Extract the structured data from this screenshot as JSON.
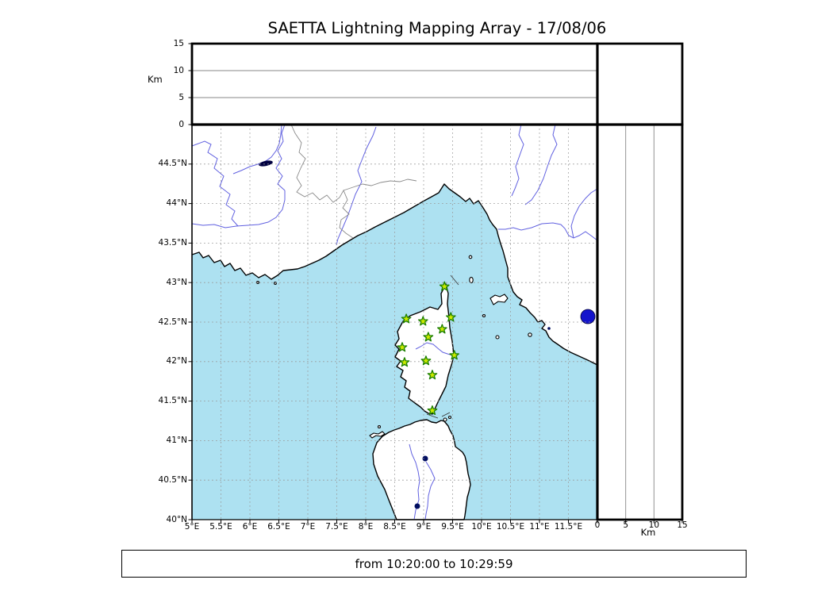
{
  "title": "SAETTA Lightning Mapping Array - 17/08/06",
  "footer": {
    "text": "from 10:20:00 to 10:29:59",
    "from": "10:20:00",
    "to": "10:29:59"
  },
  "colors": {
    "sea": "#ADE1F1",
    "land": "#FFFFFF",
    "coast": "#000000",
    "river": "#6161E0",
    "admin_border": "#8A8A8A",
    "grid": "#999999",
    "panel_grid": "#878787",
    "station_fill": "#CCEA00",
    "station_stroke": "#1B7F00",
    "lake": "#1414CC"
  },
  "altitude_axis": {
    "unit": "Km",
    "range": [
      0,
      15
    ],
    "gridlines": [
      5,
      10
    ],
    "ticks": [
      {
        "value": 0,
        "label": "0"
      },
      {
        "value": 5,
        "label": "5"
      },
      {
        "value": 10,
        "label": "10"
      },
      {
        "value": 15,
        "label": "15"
      }
    ]
  },
  "map": {
    "lon_range": [
      5,
      12
    ],
    "lat_range": [
      40,
      45
    ],
    "lon_ticks": [
      {
        "value": 5,
        "label": "5°E"
      },
      {
        "value": 5.5,
        "label": "5.5°E"
      },
      {
        "value": 6,
        "label": "6°E"
      },
      {
        "value": 6.5,
        "label": "6.5°E"
      },
      {
        "value": 7,
        "label": "7°E"
      },
      {
        "value": 7.5,
        "label": "7.5°E"
      },
      {
        "value": 8,
        "label": "8°E"
      },
      {
        "value": 8.5,
        "label": "8.5°E"
      },
      {
        "value": 9,
        "label": "9°E"
      },
      {
        "value": 9.5,
        "label": "9.5°E"
      },
      {
        "value": 10,
        "label": "10°E"
      },
      {
        "value": 10.5,
        "label": "10.5°E"
      },
      {
        "value": 11,
        "label": "11°E"
      },
      {
        "value": 11.5,
        "label": "11.5°E"
      }
    ],
    "lat_ticks": [
      {
        "value": 44.5,
        "label": "44.5°N"
      },
      {
        "value": 44,
        "label": "44°N"
      },
      {
        "value": 43.5,
        "label": "43.5°N"
      },
      {
        "value": 43,
        "label": "43°N"
      },
      {
        "value": 42.5,
        "label": "42.5°N"
      },
      {
        "value": 42,
        "label": "42°N"
      },
      {
        "value": 41.5,
        "label": "41.5°N"
      },
      {
        "value": 41,
        "label": "41°N"
      },
      {
        "value": 40.5,
        "label": "40.5°N"
      },
      {
        "value": 40,
        "label": "40°N"
      }
    ]
  },
  "stations": [
    {
      "lon": 9.36,
      "lat": 42.95
    },
    {
      "lon": 8.7,
      "lat": 42.54
    },
    {
      "lon": 8.99,
      "lat": 42.51
    },
    {
      "lon": 9.47,
      "lat": 42.56
    },
    {
      "lon": 9.32,
      "lat": 42.41
    },
    {
      "lon": 9.08,
      "lat": 42.31
    },
    {
      "lon": 8.63,
      "lat": 42.18
    },
    {
      "lon": 9.53,
      "lat": 42.08
    },
    {
      "lon": 8.67,
      "lat": 41.99
    },
    {
      "lon": 9.04,
      "lat": 42.01
    },
    {
      "lon": 9.15,
      "lat": 41.83
    },
    {
      "lon": 9.15,
      "lat": 41.38
    }
  ]
}
